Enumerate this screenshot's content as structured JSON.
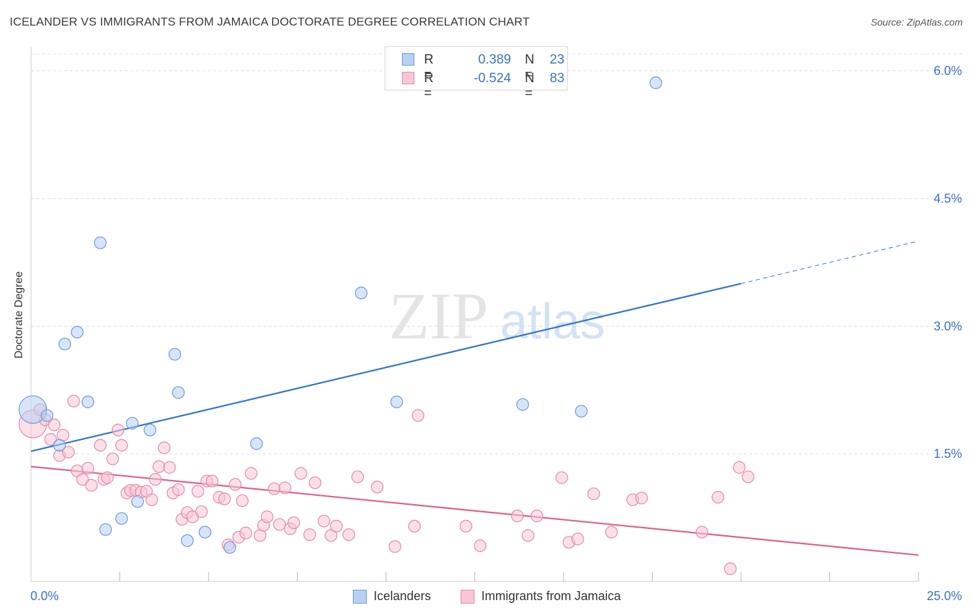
{
  "header": {
    "title": "ICELANDER VS IMMIGRANTS FROM JAMAICA DOCTORATE DEGREE CORRELATION CHART",
    "source": "Source: ZipAtlas.com"
  },
  "watermark": {
    "zip": "ZIP",
    "atlas": "atlas"
  },
  "legend_top": {
    "rows": [
      {
        "r_label": "R =",
        "r_value": "0.389",
        "n_label": "N =",
        "n_value": "23"
      },
      {
        "r_label": "R =",
        "r_value": "-0.524",
        "n_label": "N =",
        "n_value": "83"
      }
    ]
  },
  "legend_bottom": {
    "items": [
      {
        "label": "Icelanders"
      },
      {
        "label": "Immigrants from Jamaica"
      }
    ]
  },
  "colors": {
    "blue_fill": "#b8d0f3",
    "blue_stroke": "#6b9ae0",
    "blue_line": "#2f74d0",
    "pink_fill": "#f8c6d6",
    "pink_stroke": "#e78aa8",
    "pink_line": "#e0608d",
    "axis_text": "#3a73c8",
    "grid": "#dddddd"
  },
  "chart_data": {
    "type": "scatter",
    "title": "ICELANDER VS IMMIGRANTS FROM JAMAICA DOCTORATE DEGREE CORRELATION CHART",
    "xlabel": "",
    "ylabel": "Doctorate Degree",
    "xlim": [
      0,
      25
    ],
    "ylim": [
      0,
      6.2
    ],
    "x_tick_labels": [
      "0.0%",
      "25.0%"
    ],
    "y_ticks": [
      1.5,
      3.0,
      4.5,
      6.0
    ],
    "y_tick_labels": [
      "1.5%",
      "3.0%",
      "4.5%",
      "6.0%"
    ],
    "grid": true,
    "series": [
      {
        "name": "Icelanders",
        "color": "blue",
        "r": 0.389,
        "n": 23,
        "trend": {
          "x0": 0,
          "y0": 1.53,
          "x1": 20,
          "y1": 3.5,
          "dash_to_x": 25,
          "dash_to_y": 4.0
        },
        "points": [
          [
            0.05,
            2.02,
            "big"
          ],
          [
            0.45,
            1.95
          ],
          [
            0.95,
            2.79
          ],
          [
            1.3,
            2.93
          ],
          [
            1.6,
            2.11
          ],
          [
            1.95,
            3.98
          ],
          [
            0.8,
            1.6
          ],
          [
            2.85,
            1.86
          ],
          [
            3.35,
            1.78
          ],
          [
            4.05,
            2.67
          ],
          [
            4.15,
            2.22
          ],
          [
            6.35,
            1.62
          ],
          [
            9.3,
            3.39
          ],
          [
            10.3,
            2.11
          ],
          [
            13.85,
            2.08
          ],
          [
            15.5,
            2.0
          ],
          [
            17.6,
            5.86
          ],
          [
            2.55,
            0.74
          ],
          [
            3.0,
            0.94
          ],
          [
            2.1,
            0.61
          ],
          [
            4.4,
            0.48
          ],
          [
            4.9,
            0.58
          ],
          [
            5.6,
            0.4
          ]
        ]
      },
      {
        "name": "Immigrants from Jamaica",
        "color": "pink",
        "r": -0.524,
        "n": 83,
        "trend": {
          "x0": 0,
          "y0": 1.35,
          "x1": 25,
          "y1": 0.31
        },
        "points": [
          [
            0.05,
            1.85,
            "big"
          ],
          [
            0.25,
            2.02
          ],
          [
            0.4,
            1.9
          ],
          [
            0.55,
            1.67
          ],
          [
            0.65,
            1.84
          ],
          [
            0.8,
            1.48
          ],
          [
            0.9,
            1.72
          ],
          [
            1.05,
            1.52
          ],
          [
            1.2,
            2.12
          ],
          [
            1.3,
            1.3
          ],
          [
            1.45,
            1.2
          ],
          [
            1.6,
            1.33
          ],
          [
            1.7,
            1.13
          ],
          [
            1.95,
            1.6
          ],
          [
            2.05,
            1.2
          ],
          [
            2.15,
            1.22
          ],
          [
            2.3,
            1.44
          ],
          [
            2.45,
            1.78
          ],
          [
            2.55,
            1.6
          ],
          [
            2.7,
            1.04
          ],
          [
            2.8,
            1.07
          ],
          [
            2.95,
            1.07
          ],
          [
            3.1,
            1.05
          ],
          [
            3.25,
            1.06
          ],
          [
            3.4,
            0.96
          ],
          [
            3.5,
            1.2
          ],
          [
            3.6,
            1.35
          ],
          [
            3.75,
            1.57
          ],
          [
            3.9,
            1.34
          ],
          [
            4.0,
            1.04
          ],
          [
            4.15,
            1.08
          ],
          [
            4.25,
            0.73
          ],
          [
            4.4,
            0.81
          ],
          [
            4.55,
            0.76
          ],
          [
            4.7,
            1.06
          ],
          [
            4.8,
            0.82
          ],
          [
            4.95,
            1.18
          ],
          [
            5.1,
            1.18
          ],
          [
            5.3,
            0.99
          ],
          [
            5.45,
            0.97
          ],
          [
            5.55,
            0.43
          ],
          [
            5.75,
            1.14
          ],
          [
            5.85,
            0.52
          ],
          [
            5.95,
            0.95
          ],
          [
            6.05,
            0.57
          ],
          [
            6.2,
            1.27
          ],
          [
            6.45,
            0.54
          ],
          [
            6.55,
            0.66
          ],
          [
            6.65,
            0.76
          ],
          [
            6.85,
            1.09
          ],
          [
            7.0,
            0.67
          ],
          [
            7.15,
            1.1
          ],
          [
            7.3,
            0.62
          ],
          [
            7.4,
            0.69
          ],
          [
            7.6,
            1.27
          ],
          [
            7.85,
            0.55
          ],
          [
            8.0,
            1.16
          ],
          [
            8.25,
            0.71
          ],
          [
            8.45,
            0.54
          ],
          [
            8.6,
            0.65
          ],
          [
            8.95,
            0.55
          ],
          [
            9.2,
            1.23
          ],
          [
            9.75,
            1.11
          ],
          [
            10.25,
            0.41
          ],
          [
            10.8,
            0.65
          ],
          [
            10.9,
            1.95
          ],
          [
            12.25,
            0.65
          ],
          [
            12.65,
            0.42
          ],
          [
            13.7,
            0.77
          ],
          [
            14.0,
            0.54
          ],
          [
            14.25,
            0.77
          ],
          [
            14.95,
            1.22
          ],
          [
            15.15,
            0.46
          ],
          [
            15.4,
            0.5
          ],
          [
            15.85,
            1.03
          ],
          [
            16.35,
            0.58
          ],
          [
            16.95,
            0.96
          ],
          [
            17.2,
            0.98
          ],
          [
            18.9,
            0.58
          ],
          [
            19.35,
            0.99
          ],
          [
            19.7,
            0.15
          ],
          [
            19.95,
            1.34
          ],
          [
            20.2,
            1.23
          ]
        ]
      }
    ]
  }
}
